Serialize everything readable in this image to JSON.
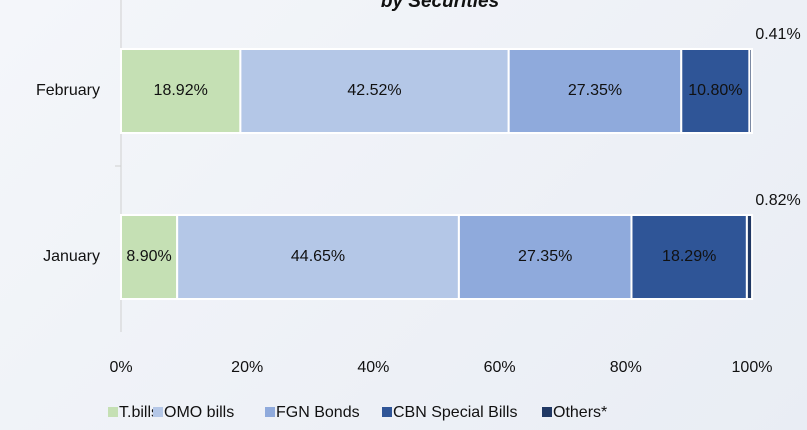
{
  "chart_data": {
    "type": "stacked-barh",
    "title": "by Securities",
    "categories": [
      "February",
      "January"
    ],
    "series": [
      {
        "name": "T.bills",
        "color": "#c5e0b4",
        "values": [
          18.92,
          8.9
        ],
        "value_labels": [
          "18.92%",
          "8.90%"
        ]
      },
      {
        "name": "OMO bills",
        "color": "#b4c7e7",
        "values": [
          42.52,
          44.65
        ],
        "value_labels": [
          "42.52%",
          "44.65%"
        ]
      },
      {
        "name": "FGN Bonds",
        "color": "#8faadc",
        "values": [
          27.35,
          27.35
        ],
        "value_labels": [
          "27.35%",
          "27.35%"
        ]
      },
      {
        "name": "CBN Special Bills",
        "color": "#2f5597",
        "values": [
          10.8,
          18.29
        ],
        "value_labels": [
          "10.80%",
          "18.29%"
        ]
      },
      {
        "name": "Others*",
        "color": "#203864",
        "values": [
          0.41,
          0.82
        ],
        "value_labels": [
          "0.41%",
          "0.82%"
        ]
      }
    ],
    "xlim": [
      0,
      100
    ],
    "xticks": [
      {
        "value": 0,
        "label": "0%"
      },
      {
        "value": 20,
        "label": "20%"
      },
      {
        "value": 40,
        "label": "40%"
      },
      {
        "value": 60,
        "label": "60%"
      },
      {
        "value": 80,
        "label": "80%"
      },
      {
        "value": 100,
        "label": "100%"
      }
    ],
    "legend": "bottom"
  }
}
